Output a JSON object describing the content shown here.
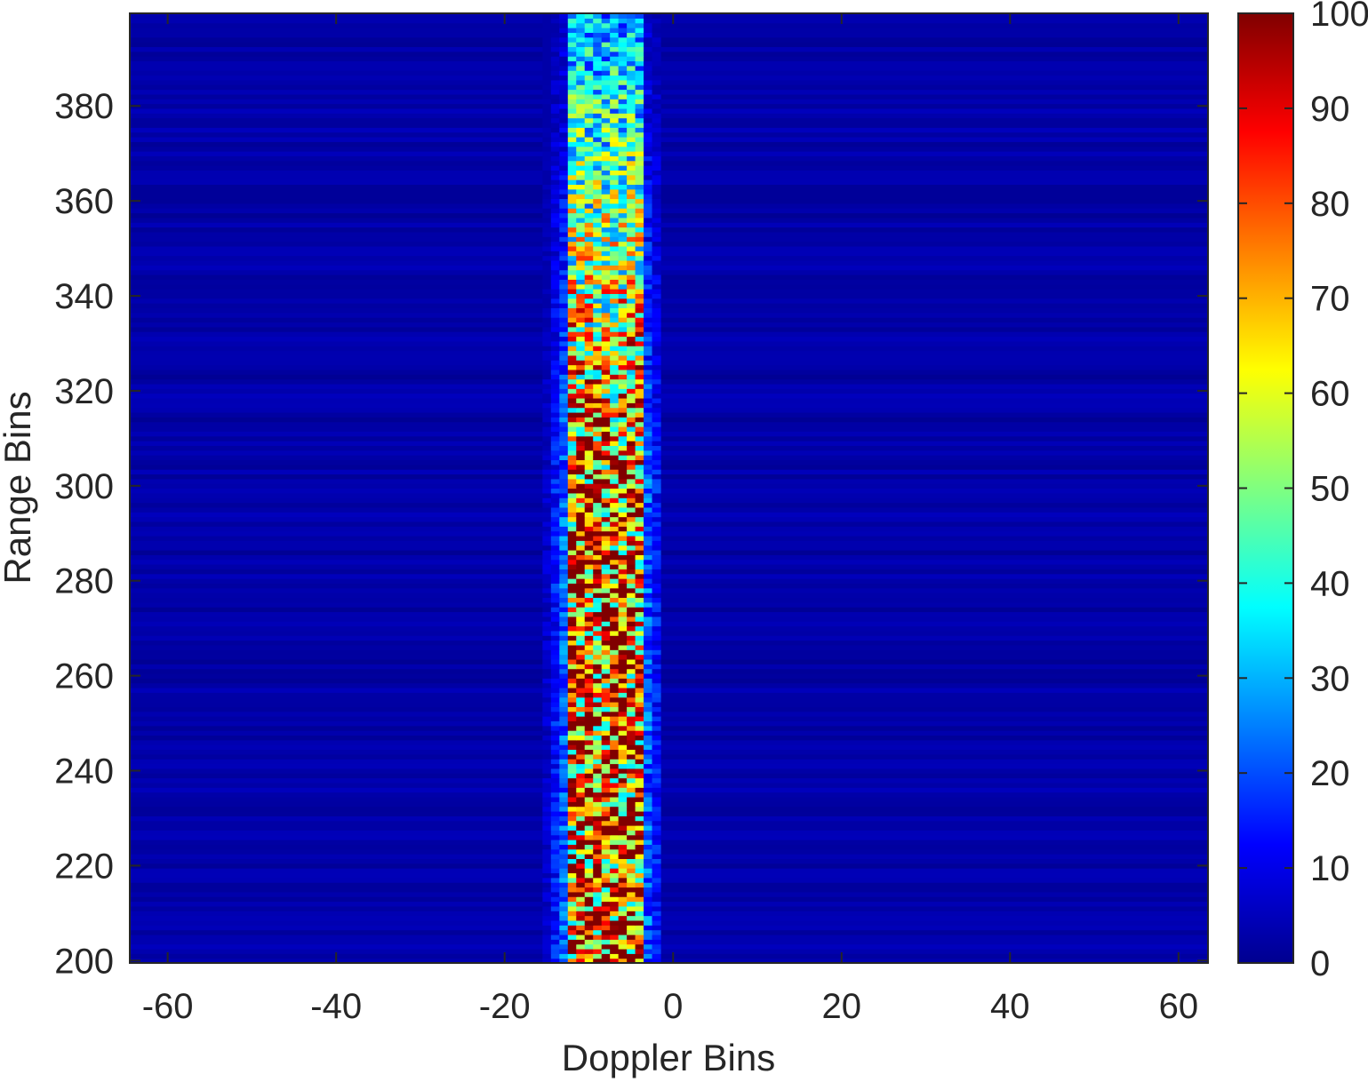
{
  "chart_data": {
    "type": "heatmap",
    "title": "",
    "xlabel": "Doppler Bins",
    "ylabel": "Range Bins",
    "xlim": [
      -64,
      63
    ],
    "ylim": [
      200,
      399
    ],
    "xticks": [
      "-60",
      "-40",
      "-20",
      "0",
      "20",
      "40",
      "60"
    ],
    "xtick_values": [
      -60,
      -40,
      -20,
      0,
      20,
      40,
      60
    ],
    "yticks": [
      "200",
      "220",
      "240",
      "260",
      "280",
      "300",
      "320",
      "340",
      "360",
      "380"
    ],
    "ytick_values": [
      200,
      220,
      240,
      260,
      280,
      300,
      320,
      340,
      360,
      380
    ],
    "colorbar": {
      "colormap": "jet",
      "range": [
        0,
        100
      ],
      "ticks": [
        "0",
        "10",
        "20",
        "30",
        "40",
        "50",
        "60",
        "70",
        "80",
        "90",
        "100"
      ],
      "tick_values": [
        0,
        10,
        20,
        30,
        40,
        50,
        60,
        70,
        80,
        90,
        100
      ]
    },
    "background_level": 4,
    "band": {
      "doppler_center": -8,
      "doppler_halfwidth": 4,
      "range_extent": [
        200,
        399
      ],
      "peak_level": 100,
      "description_levels": {
        "lower_range_200_300": 90,
        "upper_range_360_399": 35
      }
    },
    "grid": false,
    "legend": "none"
  }
}
